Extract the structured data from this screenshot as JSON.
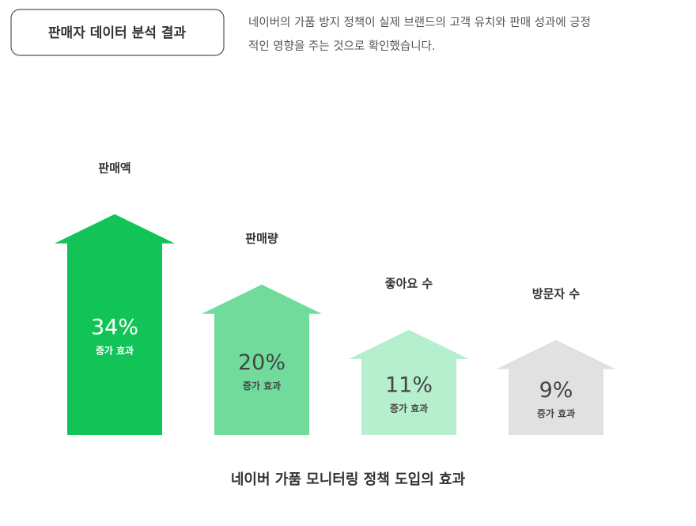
{
  "header": {
    "badge": "판매자 데이터 분석 결과",
    "description": [
      "네이버의 가품 방지 정책이 실제 브랜드의 고객 유치와 판매 성과에 긍정",
      "적인 영향을 주는 것으로 확인했습니다."
    ]
  },
  "chart_data": {
    "type": "arrow-bar",
    "categories": [
      "판매액",
      "판매량",
      "좋아요 수",
      "방문자 수"
    ],
    "values": [
      34,
      20,
      11,
      9
    ],
    "value_labels": [
      "34%",
      "20%",
      "11%",
      "9%"
    ],
    "sublabel": "증가 효과",
    "colors": [
      "#12c458",
      "#70db9b",
      "#b6efcd",
      "#e1e1e1"
    ],
    "label_colors": [
      "#ffffff",
      "#444444",
      "#444444",
      "#444444"
    ],
    "caption": "네이버 가품 모니터링 정책 도입의 효과"
  }
}
